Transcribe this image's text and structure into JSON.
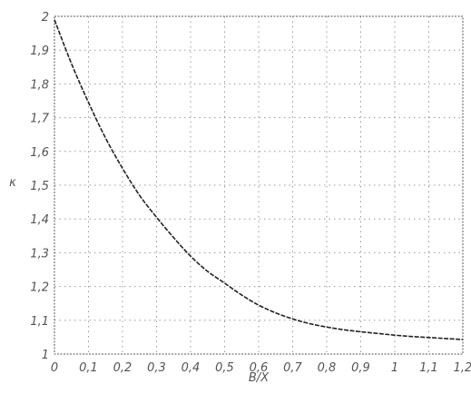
{
  "chart_data": {
    "type": "line",
    "title": "",
    "xlabel": "B/X",
    "ylabel": "κ",
    "xlim": [
      0,
      1.2
    ],
    "ylim": [
      1,
      2
    ],
    "grid": true,
    "xticks": [
      "0",
      "0,1",
      "0,2",
      "0,3",
      "0,4",
      "0,5",
      "0,6",
      "0,7",
      "0,8",
      "0,9",
      "1",
      "1,1",
      "1,2"
    ],
    "yticks": [
      "1",
      "1,1",
      "1,2",
      "1,3",
      "1,4",
      "1,5",
      "1,6",
      "1,7",
      "1,8",
      "1,9",
      "2"
    ],
    "series": [
      {
        "x": [
          0,
          0.05,
          0.1,
          0.15,
          0.2,
          0.25,
          0.3,
          0.35,
          0.4,
          0.45,
          0.5,
          0.55,
          0.6,
          0.65,
          0.7,
          0.75,
          0.8,
          0.85,
          0.9,
          0.95,
          1.0,
          1.05,
          1.1,
          1.15,
          1.2
        ],
        "y": [
          1.99,
          1.86,
          1.745,
          1.64,
          1.55,
          1.47,
          1.405,
          1.345,
          1.29,
          1.245,
          1.21,
          1.175,
          1.145,
          1.122,
          1.104,
          1.09,
          1.08,
          1.072,
          1.066,
          1.061,
          1.056,
          1.052,
          1.049,
          1.046,
          1.043
        ]
      }
    ]
  }
}
